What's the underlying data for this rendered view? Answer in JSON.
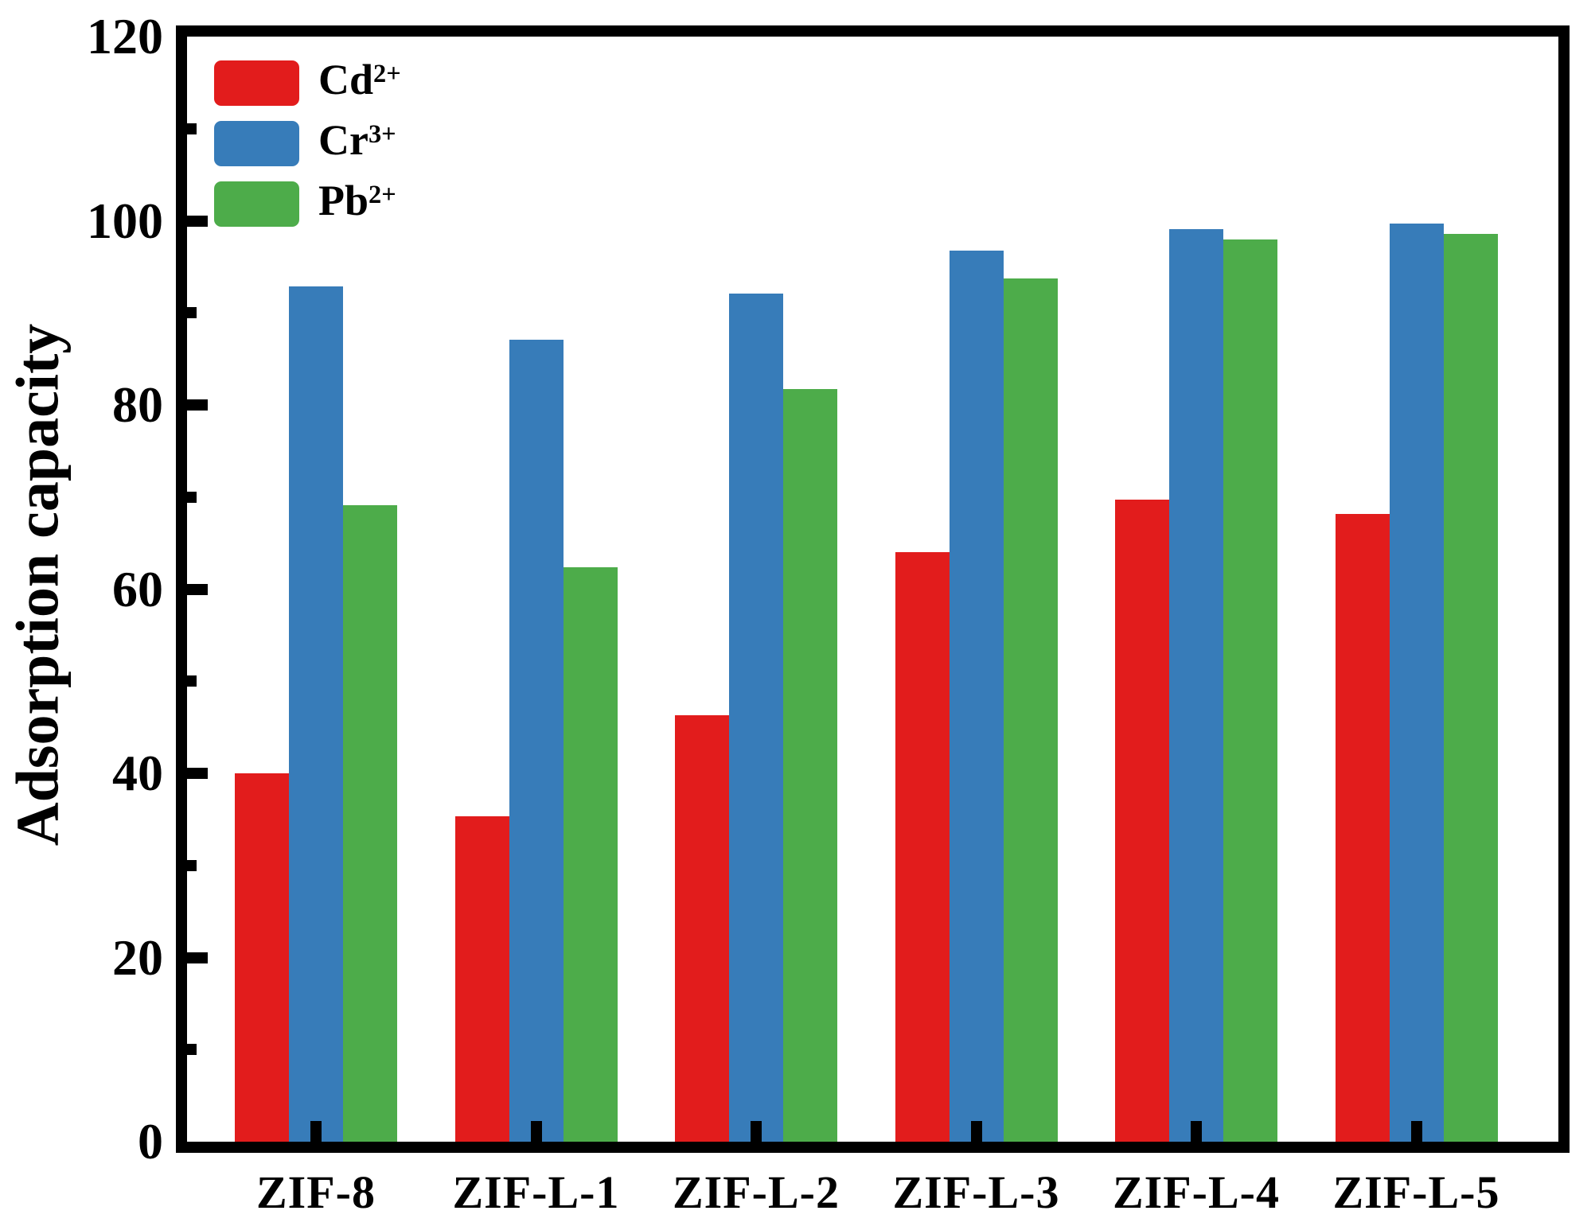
{
  "chart_data": {
    "type": "bar",
    "title": "",
    "ylabel": "Adsorption capacity",
    "xlabel": "",
    "ylim": [
      0,
      120
    ],
    "yticks": [
      0,
      20,
      40,
      60,
      80,
      100,
      120
    ],
    "y_minor_tick_interval": 10,
    "grid": false,
    "legend_position": "top-left-inside",
    "frame": "full-box-thick-black",
    "categories": [
      "ZIF-8",
      "ZIF-L-1",
      "ZIF-L-2",
      "ZIF-L-3",
      "ZIF-L-4",
      "ZIF-L-5"
    ],
    "series": [
      {
        "name": "Cd",
        "sup": "2+",
        "color": "#e21c1c",
        "values": [
          40,
          35.3,
          46.3,
          64,
          69.7,
          68.2
        ]
      },
      {
        "name": "Cr",
        "sup": "3+",
        "color": "#377cb9",
        "values": [
          92.9,
          87.1,
          92.1,
          96.8,
          99.1,
          99.7
        ]
      },
      {
        "name": "Pb",
        "sup": "2+",
        "color": "#4dac4a",
        "values": [
          69.1,
          62.4,
          81.7,
          93.7,
          98.0,
          98.6
        ]
      }
    ]
  }
}
